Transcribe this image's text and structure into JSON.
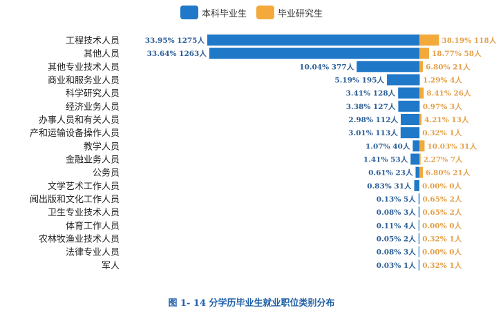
{
  "chart_data": {
    "type": "bar",
    "orientation": "horizontal-diverging",
    "title": "图 1- 14 分学历毕业生就业职位类别分布",
    "legend_placement": "top",
    "colors": {
      "undergrad": "#1f78c8",
      "grad": "#f3aa3a",
      "undergrad_label": "#2c5e98",
      "grad_label": "#e3a04a"
    },
    "grid": false,
    "categories": [
      "工程技术人员",
      "其他人员",
      "其他专业技术人员",
      "商业和服务业人员",
      "科学研究人员",
      "经济业务人员",
      "办事人员和有关人员",
      "产和运输设备操作人员",
      "教学人员",
      "金融业务人员",
      "公务员",
      "文学艺术工作人员",
      "闻出版和文化工作人员",
      "卫生专业技术人员",
      "体育工作人员",
      "农林牧渔业技术人员",
      "法律专业人员",
      "军人"
    ],
    "series": [
      {
        "name": "本科毕业生",
        "values": [
          1275,
          1263,
          377,
          195,
          128,
          127,
          112,
          113,
          40,
          53,
          23,
          31,
          5,
          3,
          4,
          2,
          3,
          1
        ],
        "percents": [
          "33.95%",
          "33.64%",
          "10.04%",
          "5.19%",
          "3.41%",
          "3.38%",
          "2.98%",
          "3.01%",
          "1.07%",
          "1.41%",
          "0.61%",
          "0.83%",
          "0.13%",
          "0.08%",
          "0.11%",
          "0.05%",
          "0.08%",
          "0.03%"
        ]
      },
      {
        "name": "毕业研究生",
        "values": [
          118,
          58,
          21,
          4,
          26,
          3,
          13,
          1,
          31,
          7,
          21,
          0,
          2,
          2,
          0,
          1,
          0,
          1
        ],
        "percents": [
          "38.19%",
          "18.77%",
          "6.80%",
          "1.29%",
          "8.41%",
          "0.97%",
          "4.21%",
          "0.32%",
          "10.03%",
          "2.27%",
          "6.80%",
          "0.00%",
          "0.65%",
          "0.65%",
          "0.00%",
          "0.32%",
          "0.00%",
          "0.32%"
        ]
      }
    ],
    "unit": "人"
  }
}
